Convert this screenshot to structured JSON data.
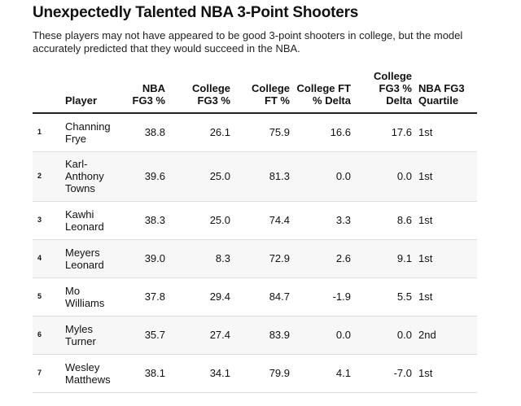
{
  "title": "Unexpectedly Talented NBA 3-Point Shooters",
  "subtitle": "These players may not have appeared to be good 3-point shooters in college, but the model accurately predicted that they would succeed in the NBA.",
  "table": {
    "headers": {
      "rank": "",
      "player": "Player",
      "nba_fg3": "NBA FG3 %",
      "college_fg3": "College FG3 %",
      "college_ft": "College FT %",
      "college_ft_delta": "College FT % Delta",
      "college_fg3_delta": "College FG3 % Delta",
      "nba_fg3_quartile": "NBA FG3 Quartile"
    },
    "rows": [
      {
        "rank": "1",
        "player": "Channing Frye",
        "nba_fg3": "38.8",
        "college_fg3": "26.1",
        "college_ft": "75.9",
        "college_ft_delta": "16.6",
        "college_fg3_delta": "17.6",
        "nba_fg3_quartile": "1st"
      },
      {
        "rank": "2",
        "player": "Karl-Anthony Towns",
        "nba_fg3": "39.6",
        "college_fg3": "25.0",
        "college_ft": "81.3",
        "college_ft_delta": "0.0",
        "college_fg3_delta": "0.0",
        "nba_fg3_quartile": "1st"
      },
      {
        "rank": "3",
        "player": "Kawhi Leonard",
        "nba_fg3": "38.3",
        "college_fg3": "25.0",
        "college_ft": "74.4",
        "college_ft_delta": "3.3",
        "college_fg3_delta": "8.6",
        "nba_fg3_quartile": "1st"
      },
      {
        "rank": "4",
        "player": "Meyers Leonard",
        "nba_fg3": "39.0",
        "college_fg3": "8.3",
        "college_ft": "72.9",
        "college_ft_delta": "2.6",
        "college_fg3_delta": "9.1",
        "nba_fg3_quartile": "1st"
      },
      {
        "rank": "5",
        "player": "Mo Williams",
        "nba_fg3": "37.8",
        "college_fg3": "29.4",
        "college_ft": "84.7",
        "college_ft_delta": "-1.9",
        "college_fg3_delta": "5.5",
        "nba_fg3_quartile": "1st"
      },
      {
        "rank": "6",
        "player": "Myles Turner",
        "nba_fg3": "35.7",
        "college_fg3": "27.4",
        "college_ft": "83.9",
        "college_ft_delta": "0.0",
        "college_fg3_delta": "0.0",
        "nba_fg3_quartile": "2nd"
      },
      {
        "rank": "7",
        "player": "Wesley Matthews",
        "nba_fg3": "38.1",
        "college_fg3": "34.1",
        "college_ft": "79.9",
        "college_ft_delta": "4.1",
        "college_fg3_delta": "-7.0",
        "nba_fg3_quartile": "1st"
      }
    ]
  }
}
